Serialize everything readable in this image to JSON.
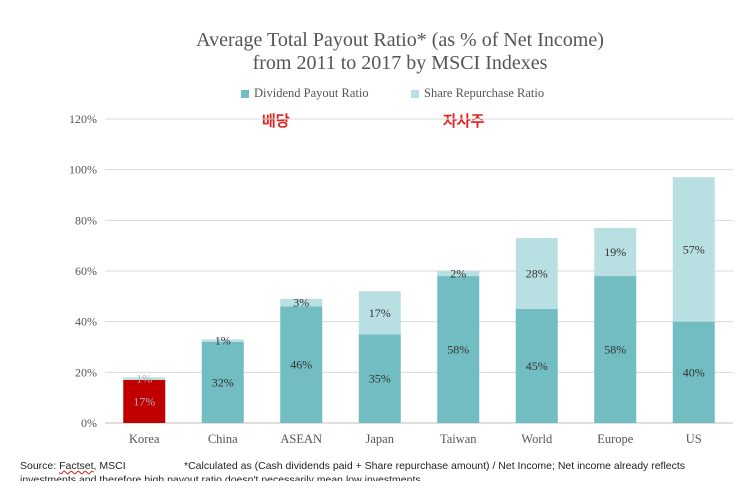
{
  "chart_data": {
    "type": "bar",
    "stacked": true,
    "title_line1": "Average Total Payout Ratio* (as % of Net Income)",
    "title_line2": "from 2011 to 2017 by MSCI Indexes",
    "categories": [
      "Korea",
      "China",
      "ASEAN",
      "Japan",
      "Taiwan",
      "World",
      "Europe",
      "US"
    ],
    "series": [
      {
        "name": "Dividend Payout Ratio",
        "color": "#72bdc2",
        "values": [
          17,
          32,
          46,
          35,
          58,
          45,
          58,
          40
        ],
        "labels": [
          "17%",
          "32%",
          "46%",
          "35%",
          "58%",
          "45%",
          "58%",
          "40%"
        ]
      },
      {
        "name": "Share Repurchase Ratio",
        "color": "#b8dfe1",
        "values": [
          1,
          1,
          3,
          17,
          2,
          28,
          19,
          57
        ],
        "labels": [
          "1%",
          "1%",
          "3%",
          "17%",
          "2%",
          "28%",
          "19%",
          "57%"
        ]
      }
    ],
    "highlight": {
      "category": "Korea",
      "color": "#c00000"
    },
    "ylim": [
      0,
      120
    ],
    "yticks": [
      0,
      20,
      40,
      60,
      80,
      100,
      120
    ],
    "ytick_labels": [
      "0%",
      "20%",
      "40%",
      "60%",
      "80%",
      "100%",
      "120%"
    ],
    "grid": true,
    "legend_position": "top"
  },
  "annotations": {
    "dividend_kr": "배당",
    "buyback_kr": "자사주"
  },
  "footer": {
    "source_prefix": "Source: ",
    "source_link": "Factset",
    "source_suffix": ", MSCI",
    "note": "*Calculated as (Cash dividends paid + Share repurchase amount) / Net Income; Net income already reflects",
    "note_line2": "investments and therefore high payout ratio doesn't necessarily mean low investments"
  }
}
